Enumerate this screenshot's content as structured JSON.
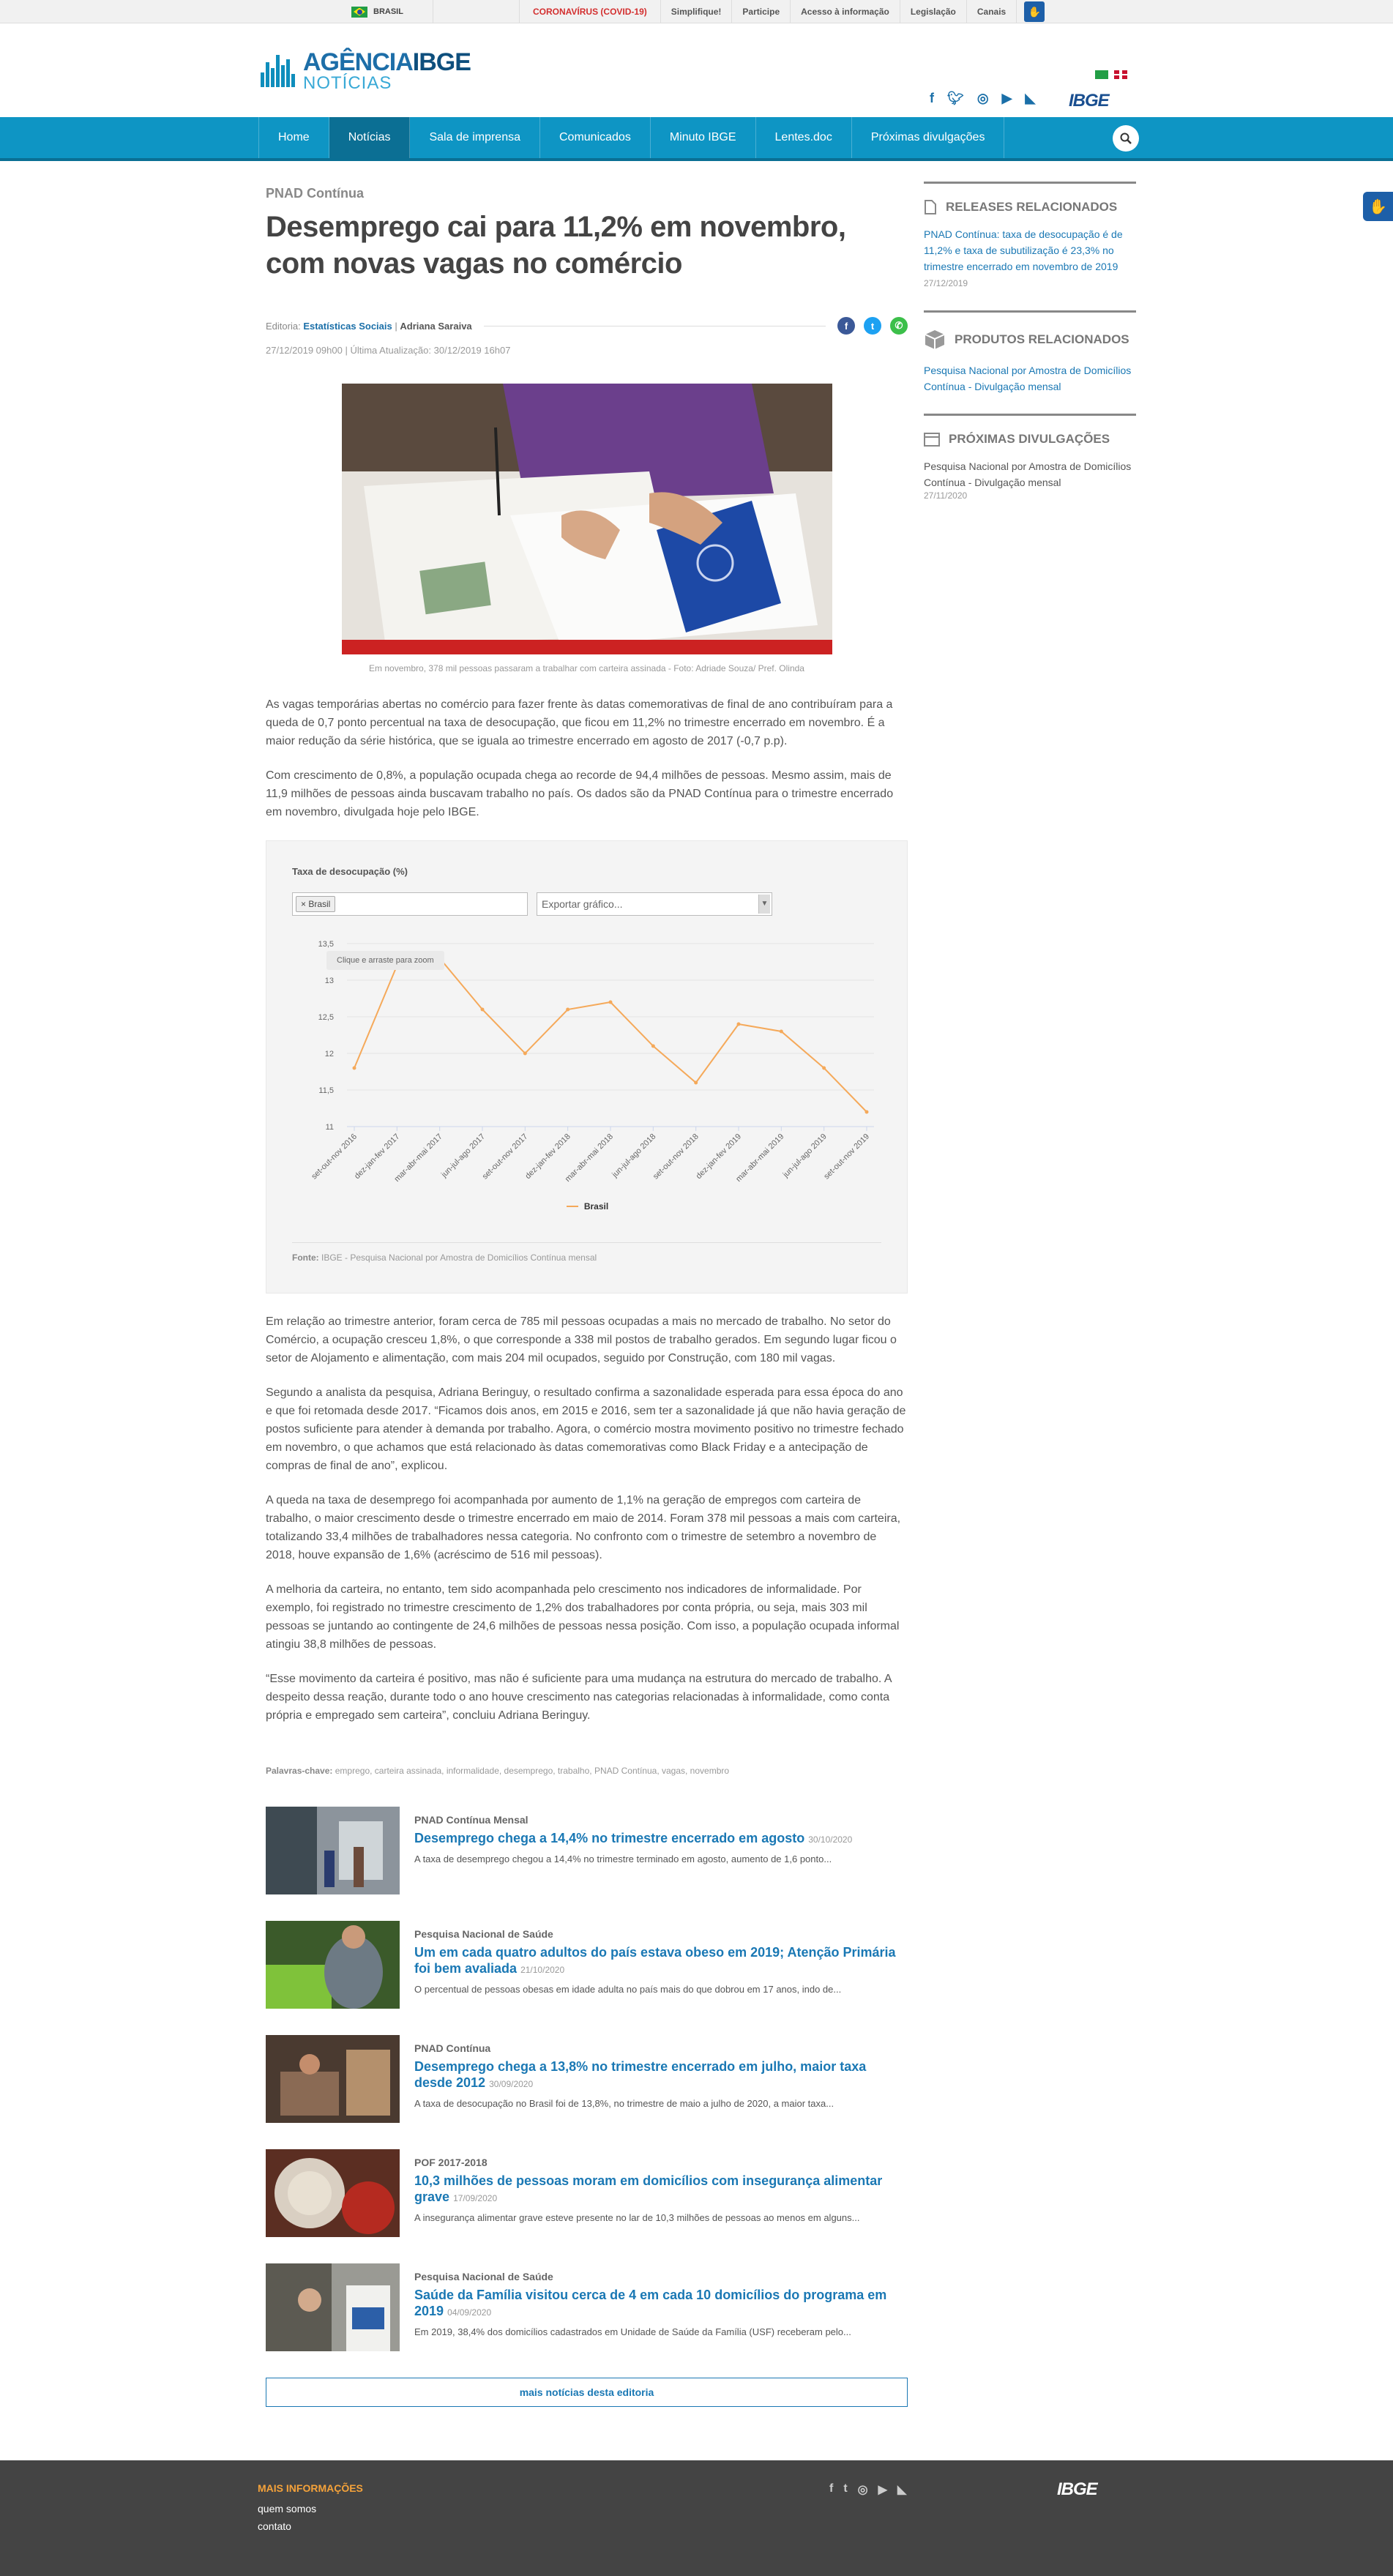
{
  "govbar": {
    "country": "BRASIL",
    "links": [
      "CORONAVÍRUS (COVID-19)",
      "Simplifique!",
      "Participe",
      "Acesso à informação",
      "Legislação",
      "Canais"
    ]
  },
  "header": {
    "logo_line1": "AGÊNCIA",
    "logo_line1b": "IBGE",
    "logo_line2": "NOTÍCIAS",
    "brand": "IBGE"
  },
  "nav": {
    "items": [
      "Home",
      "Notícias",
      "Sala de imprensa",
      "Comunicados",
      "Minuto IBGE",
      "Lentes.doc",
      "Próximas divulgações"
    ],
    "active": "Notícias"
  },
  "article": {
    "kicker": "PNAD Contínua",
    "title": "Desemprego cai para 11,2% em novembro, com novas vagas no comércio",
    "editoria_label": "Editoria:",
    "editoria": "Estatísticas Sociais",
    "separator": "|",
    "author": "Adriana Saraiva",
    "published": "27/12/2019 09h00",
    "updated": "Última Atualização: 30/12/2019 16h07",
    "caption": "Em novembro, 378 mil pessoas passaram a trabalhar com carteira assinada - Foto: Adriade Souza/ Pref. Olinda",
    "paragraphs_top": [
      "As vagas temporárias abertas no comércio para fazer frente às datas comemorativas de final de ano contribuíram para a queda de 0,7 ponto percentual na taxa de desocupação, que ficou em 11,2% no trimestre encerrado em novembro. É a maior redução da série histórica, que se iguala ao trimestre encerrado em agosto de 2017 (-0,7 p.p).",
      "Com crescimento de 0,8%, a população ocupada chega ao recorde de 94,4 milhões de pessoas. Mesmo assim, mais de 11,9 milhões de pessoas ainda buscavam trabalho no país. Os dados são da PNAD Contínua para o trimestre encerrado em novembro, divulgada hoje pelo IBGE."
    ],
    "paragraphs_bottom": [
      "Em relação ao trimestre anterior, foram cerca de 785 mil pessoas ocupadas a mais no mercado de trabalho. No setor do Comércio, a ocupação cresceu 1,8%, o que corresponde a 338 mil postos de trabalho gerados. Em segundo lugar ficou o setor de Alojamento e alimentação, com mais 204 mil ocupados, seguido por Construção, com 180 mil vagas.",
      "Segundo a analista da pesquisa, Adriana Beringuy, o resultado confirma a sazonalidade esperada para essa época do ano e que foi retomada desde 2017. “Ficamos dois anos, em 2015 e 2016, sem ter a sazonalidade já que não havia geração de postos suficiente para atender à demanda por trabalho. Agora, o comércio mostra movimento positivo no trimestre fechado em novembro, o que achamos que está relacionado às datas comemorativas como Black Friday e a antecipação de compras de final de ano”, explicou.",
      "A queda na taxa de desemprego foi acompanhada por aumento de 1,1% na geração de empregos com carteira de trabalho, o maior crescimento desde o trimestre encerrado em maio de 2014. Foram 378 mil pessoas a mais com carteira, totalizando 33,4 milhões de trabalhadores nessa categoria. No confronto com o trimestre de setembro a novembro de 2018, houve expansão de 1,6% (acréscimo de 516 mil pessoas).",
      "A melhoria da carteira, no entanto, tem sido acompanhada pelo crescimento nos indicadores de informalidade. Por exemplo, foi registrado no trimestre crescimento de 1,2% dos trabalhadores por conta própria, ou seja, mais 303 mil pessoas se juntando ao contingente de 24,6 milhões de pessoas nessa posição. Com isso, a população ocupada informal atingiu 38,8 milhões de pessoas.",
      "“Esse movimento da carteira é positivo, mas não é suficiente para uma mudança na estrutura do mercado de trabalho. A despeito dessa reação, durante todo o ano houve crescimento nas categorias relacionadas à informalidade, como conta própria e empregado sem carteira”, concluiu Adriana Beringuy."
    ],
    "keywords_label": "Palavras-chave:",
    "keywords": "emprego, carteira assinada, informalidade, desemprego, trabalho, PNAD Contínua, vagas, novembro"
  },
  "chart_widget": {
    "tag": "× Brasil",
    "export_placeholder": "Exportar gráfico...",
    "zoom_hint": "Clique e arraste para zoom",
    "fonte_label": "Fonte:",
    "fonte": "IBGE - Pesquisa Nacional por Amostra de Domicílios Contínua mensal",
    "line_color": "#f5a95a"
  },
  "chart_data": {
    "type": "line",
    "title": "Taxa de desocupação (%)",
    "categories": [
      "set-out-nov 2016",
      "dez-jan-fev 2017",
      "mar-abr-mai 2017",
      "jun-jul-ago 2017",
      "set-out-nov 2017",
      "dez-jan-fev 2018",
      "mar-abr-mai 2018",
      "jun-jul-ago 2018",
      "set-out-nov 2018",
      "dez-jan-fev 2019",
      "mar-abr-mai 2019",
      "jun-jul-ago 2019",
      "set-out-nov 2019"
    ],
    "series": [
      {
        "name": "Brasil",
        "values": [
          11.8,
          13.2,
          13.3,
          12.6,
          12.0,
          12.6,
          12.7,
          12.1,
          11.6,
          12.4,
          12.3,
          11.8,
          11.2
        ]
      }
    ],
    "ylim": [
      11,
      13.5
    ],
    "yticks": [
      "11",
      "11,5",
      "12",
      "12,5",
      "13",
      "13,5"
    ],
    "grid": true,
    "legend": "bottom-center"
  },
  "related_news": [
    {
      "category": "PNAD Contínua Mensal",
      "title": "Desemprego chega a 14,4% no trimestre encerrado em agosto",
      "date": "30/10/2020",
      "summary": "A taxa de desemprego chegou a 14,4% no trimestre terminado em agosto, aumento de 1,6 ponto..."
    },
    {
      "category": "Pesquisa Nacional de Saúde",
      "title": "Um em cada quatro adultos do país estava obeso em 2019; Atenção Primária foi bem avaliada",
      "date": "21/10/2020",
      "summary": "O percentual de pessoas obesas em idade adulta no país mais do que dobrou em 17 anos, indo de..."
    },
    {
      "category": "PNAD Contínua",
      "title": "Desemprego chega a 13,8% no trimestre encerrado em julho, maior taxa desde 2012",
      "date": "30/09/2020",
      "summary": "A taxa de desocupação no Brasil foi de 13,8%, no trimestre de maio a julho de 2020, a maior taxa..."
    },
    {
      "category": "POF 2017-2018",
      "title": "10,3 milhões de pessoas moram em domicílios com insegurança alimentar grave",
      "date": "17/09/2020",
      "summary": "A insegurança alimentar grave esteve presente no lar de 10,3 milhões de pessoas ao menos em alguns..."
    },
    {
      "category": "Pesquisa Nacional de Saúde",
      "title": "Saúde da Família visitou cerca de 4 em cada 10 domicílios do programa em 2019",
      "date": "04/09/2020",
      "summary": "Em 2019, 38,4% dos domicílios cadastrados em Unidade de Saúde da Família (USF) receberam pelo..."
    }
  ],
  "more_news_label": "mais notícias desta editoria",
  "sidebar": {
    "releases": {
      "heading": "RELEASES RELACIONADOS",
      "link": "PNAD Contínua: taxa de desocupação é de 11,2% e taxa de subutilização é 23,3% no trimestre encerrado em novembro de 2019",
      "date": "27/12/2019"
    },
    "produtos": {
      "heading": "PRODUTOS RELACIONADOS",
      "link": "Pesquisa Nacional por Amostra de Domicílios Contínua - Divulgação mensal"
    },
    "proximas": {
      "heading": "PRÓXIMAS DIVULGAÇÕES",
      "link": "Pesquisa Nacional por Amostra de Domicílios Contínua - Divulgação mensal",
      "date": "27/11/2020"
    }
  },
  "footer": {
    "heading": "MAIS INFORMAÇÕES",
    "links": [
      "quem somos",
      "contato"
    ],
    "brand": "IBGE"
  }
}
